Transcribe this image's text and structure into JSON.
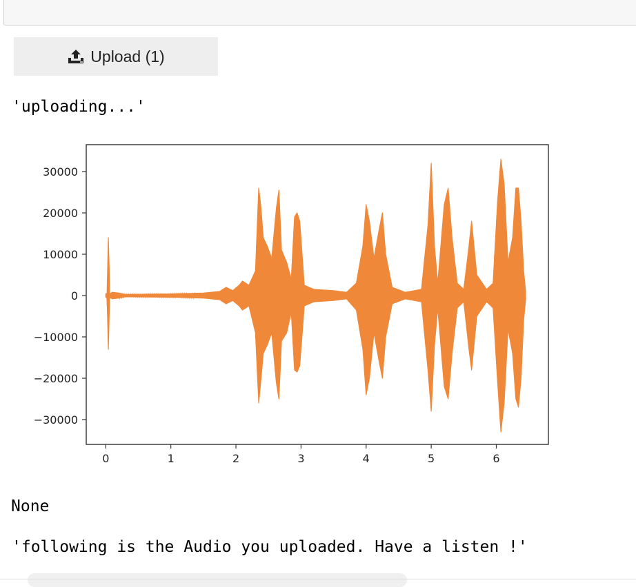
{
  "upload_button": {
    "icon": "upload-icon",
    "label": "Upload (1)"
  },
  "outputs": {
    "uploading": "'uploading...'",
    "none": "None",
    "following": "'following is the Audio you uploaded. Have a listen !'"
  },
  "chart_data": {
    "type": "line",
    "title": "",
    "xlabel": "",
    "ylabel": "",
    "xlim": [
      -0.3,
      6.8
    ],
    "ylim": [
      -36000,
      36500
    ],
    "xticks": [
      0,
      1,
      2,
      3,
      4,
      5,
      6
    ],
    "yticks": [
      30000,
      20000,
      10000,
      0,
      -10000,
      -20000,
      -30000
    ],
    "ytick_labels": [
      "30000",
      "20000",
      "10000",
      "0",
      "−10000",
      "−20000",
      "−30000"
    ],
    "grid": false,
    "series": [
      {
        "color": "#f0883a",
        "note_kind": "audio waveform envelope",
        "x": [
          0.0,
          0.02,
          0.04,
          0.06,
          0.1,
          0.2,
          0.3,
          1.0,
          1.5,
          1.75,
          1.85,
          1.95,
          2.05,
          2.1,
          2.2,
          2.3,
          2.35,
          2.38,
          2.42,
          2.48,
          2.55,
          2.62,
          2.66,
          2.7,
          2.78,
          2.85,
          2.9,
          2.94,
          2.98,
          3.05,
          3.2,
          3.5,
          3.7,
          3.85,
          3.95,
          4.0,
          4.05,
          4.12,
          4.2,
          4.25,
          4.3,
          4.4,
          4.6,
          4.85,
          4.95,
          5.0,
          5.05,
          5.1,
          5.2,
          5.26,
          5.32,
          5.4,
          5.5,
          5.58,
          5.62,
          5.7,
          5.85,
          5.95,
          6.02,
          6.07,
          6.12,
          6.18,
          6.25,
          6.3,
          6.34,
          6.38,
          6.42,
          6.45
        ],
        "upper": [
          400,
          600,
          14000,
          400,
          800,
          600,
          300,
          400,
          600,
          1000,
          2000,
          1200,
          2500,
          3500,
          2500,
          6000,
          26000,
          22000,
          14000,
          12000,
          9000,
          21000,
          25500,
          11000,
          8000,
          4000,
          19000,
          20000,
          18000,
          2500,
          1500,
          1200,
          800,
          3000,
          12000,
          22000,
          18000,
          9000,
          16000,
          20000,
          10000,
          2000,
          800,
          1500,
          17000,
          32000,
          12000,
          3000,
          22000,
          26000,
          14000,
          3000,
          1500,
          12000,
          18000,
          5000,
          1500,
          3000,
          23000,
          33000,
          27000,
          8000,
          14000,
          26000,
          26000,
          18000,
          6000,
          1000
        ],
        "lower": [
          -400,
          -600,
          -13000,
          -400,
          -800,
          -600,
          -300,
          -400,
          -600,
          -1000,
          -2000,
          -1200,
          -2500,
          -3500,
          -2500,
          -9000,
          -26000,
          -21000,
          -14000,
          -12000,
          -9000,
          -21000,
          -25000,
          -11000,
          -9000,
          -4000,
          -18000,
          -18500,
          -17000,
          -2500,
          -1500,
          -1200,
          -800,
          -3500,
          -13000,
          -24000,
          -20000,
          -9000,
          -16000,
          -20000,
          -10000,
          -2000,
          -800,
          -1500,
          -18000,
          -28000,
          -12000,
          -3000,
          -22000,
          -25000,
          -14000,
          -3000,
          -1500,
          -13000,
          -18000,
          -5000,
          -1500,
          -3000,
          -21000,
          -33000,
          -26000,
          -8000,
          -14000,
          -25000,
          -27000,
          -20000,
          -6000,
          -1000
        ]
      }
    ]
  }
}
